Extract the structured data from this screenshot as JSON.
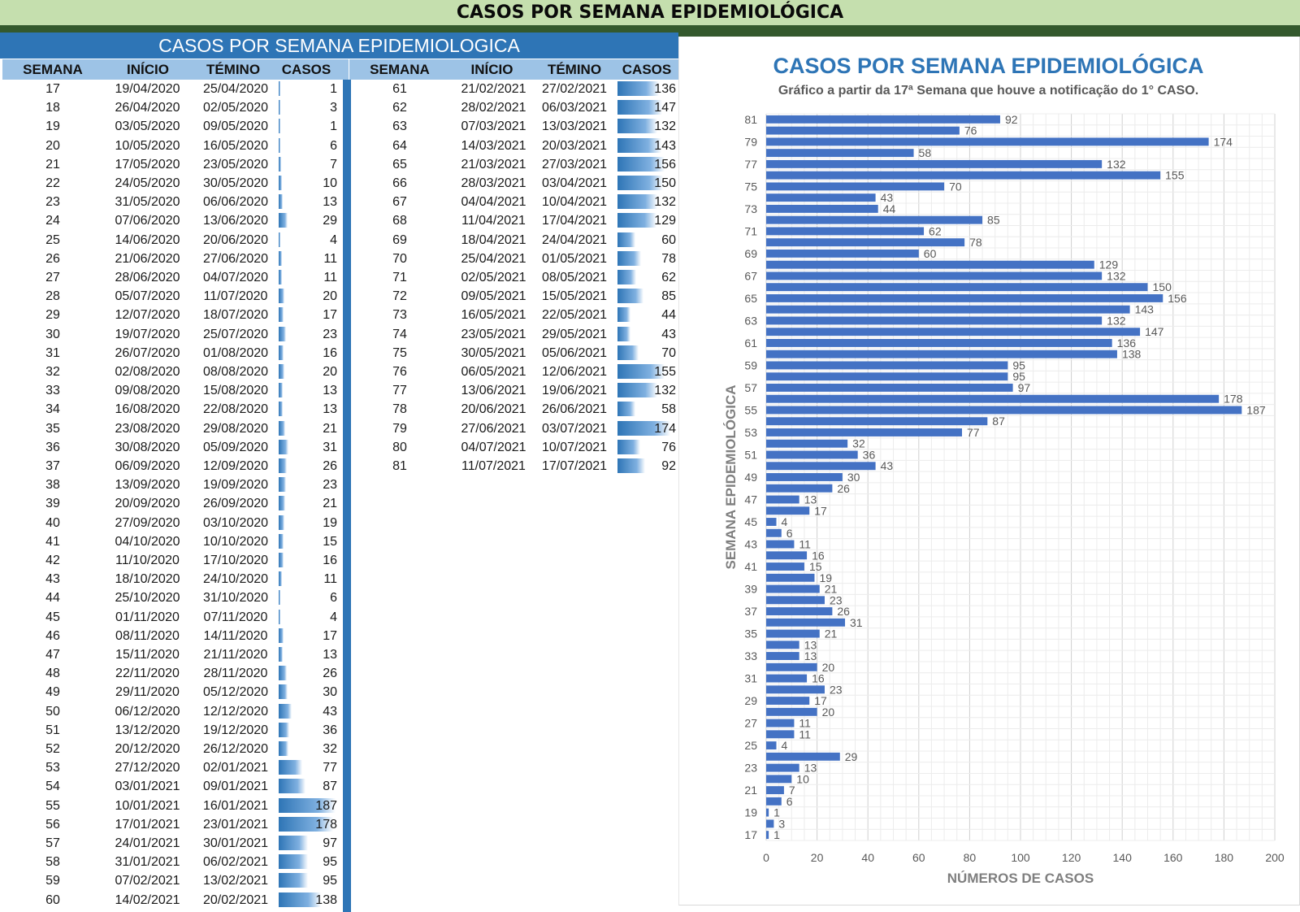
{
  "header": {
    "title": "CASOS POR SEMANA EPIDEMIOLÓGICA"
  },
  "table": {
    "title": "CASOS POR SEMANA EPIDEMIOLOGICA",
    "columns": [
      "SEMANA",
      "INÍCIO",
      "TÉMINO",
      "CASOS"
    ],
    "bar_color": "#2e75b6",
    "rows": [
      [
        "17",
        "19/04/2020",
        "25/04/2020",
        1
      ],
      [
        "18",
        "26/04/2020",
        "02/05/2020",
        3
      ],
      [
        "19",
        "03/05/2020",
        "09/05/2020",
        1
      ],
      [
        "20",
        "10/05/2020",
        "16/05/2020",
        6
      ],
      [
        "21",
        "17/05/2020",
        "23/05/2020",
        7
      ],
      [
        "22",
        "24/05/2020",
        "30/05/2020",
        10
      ],
      [
        "23",
        "31/05/2020",
        "06/06/2020",
        13
      ],
      [
        "24",
        "07/06/2020",
        "13/06/2020",
        29
      ],
      [
        "25",
        "14/06/2020",
        "20/06/2020",
        4
      ],
      [
        "26",
        "21/06/2020",
        "27/06/2020",
        11
      ],
      [
        "27",
        "28/06/2020",
        "04/07/2020",
        11
      ],
      [
        "28",
        "05/07/2020",
        "11/07/2020",
        20
      ],
      [
        "29",
        "12/07/2020",
        "18/07/2020",
        17
      ],
      [
        "30",
        "19/07/2020",
        "25/07/2020",
        23
      ],
      [
        "31",
        "26/07/2020",
        "01/08/2020",
        16
      ],
      [
        "32",
        "02/08/2020",
        "08/08/2020",
        20
      ],
      [
        "33",
        "09/08/2020",
        "15/08/2020",
        13
      ],
      [
        "34",
        "16/08/2020",
        "22/08/2020",
        13
      ],
      [
        "35",
        "23/08/2020",
        "29/08/2020",
        21
      ],
      [
        "36",
        "30/08/2020",
        "05/09/2020",
        31
      ],
      [
        "37",
        "06/09/2020",
        "12/09/2020",
        26
      ],
      [
        "38",
        "13/09/2020",
        "19/09/2020",
        23
      ],
      [
        "39",
        "20/09/2020",
        "26/09/2020",
        21
      ],
      [
        "40",
        "27/09/2020",
        "03/10/2020",
        19
      ],
      [
        "41",
        "04/10/2020",
        "10/10/2020",
        15
      ],
      [
        "42",
        "11/10/2020",
        "17/10/2020",
        16
      ],
      [
        "43",
        "18/10/2020",
        "24/10/2020",
        11
      ],
      [
        "44",
        "25/10/2020",
        "31/10/2020",
        6
      ],
      [
        "45",
        "01/11/2020",
        "07/11/2020",
        4
      ],
      [
        "46",
        "08/11/2020",
        "14/11/2020",
        17
      ],
      [
        "47",
        "15/11/2020",
        "21/11/2020",
        13
      ],
      [
        "48",
        "22/11/2020",
        "28/11/2020",
        26
      ],
      [
        "49",
        "29/11/2020",
        "05/12/2020",
        30
      ],
      [
        "50",
        "06/12/2020",
        "12/12/2020",
        43
      ],
      [
        "51",
        "13/12/2020",
        "19/12/2020",
        36
      ],
      [
        "52",
        "20/12/2020",
        "26/12/2020",
        32
      ],
      [
        "53",
        "27/12/2020",
        "02/01/2021",
        77
      ],
      [
        "54",
        "03/01/2021",
        "09/01/2021",
        87
      ],
      [
        "55",
        "10/01/2021",
        "16/01/2021",
        187
      ],
      [
        "56",
        "17/01/2021",
        "23/01/2021",
        178
      ],
      [
        "57",
        "24/01/2021",
        "30/01/2021",
        97
      ],
      [
        "58",
        "31/01/2021",
        "06/02/2021",
        95
      ],
      [
        "59",
        "07/02/2021",
        "13/02/2021",
        95
      ],
      [
        "60",
        "14/02/2021",
        "20/02/2021",
        138
      ],
      [
        "61",
        "21/02/2021",
        "27/02/2021",
        136
      ],
      [
        "62",
        "28/02/2021",
        "06/03/2021",
        147
      ],
      [
        "63",
        "07/03/2021",
        "13/03/2021",
        132
      ],
      [
        "64",
        "14/03/2021",
        "20/03/2021",
        143
      ],
      [
        "65",
        "21/03/2021",
        "27/03/2021",
        156
      ],
      [
        "66",
        "28/03/2021",
        "03/04/2021",
        150
      ],
      [
        "67",
        "04/04/2021",
        "10/04/2021",
        132
      ],
      [
        "68",
        "11/04/2021",
        "17/04/2021",
        129
      ],
      [
        "69",
        "18/04/2021",
        "24/04/2021",
        60
      ],
      [
        "70",
        "25/04/2021",
        "01/05/2021",
        78
      ],
      [
        "71",
        "02/05/2021",
        "08/05/2021",
        62
      ],
      [
        "72",
        "09/05/2021",
        "15/05/2021",
        85
      ],
      [
        "73",
        "16/05/2021",
        "22/05/2021",
        44
      ],
      [
        "74",
        "23/05/2021",
        "29/05/2021",
        43
      ],
      [
        "75",
        "30/05/2021",
        "05/06/2021",
        70
      ],
      [
        "76",
        "06/05/2021",
        "12/06/2021",
        155
      ],
      [
        "77",
        "13/06/2021",
        "19/06/2021",
        132
      ],
      [
        "78",
        "20/06/2021",
        "26/06/2021",
        58
      ],
      [
        "79",
        "27/06/2021",
        "03/07/2021",
        174
      ],
      [
        "80",
        "04/07/2021",
        "10/07/2021",
        76
      ],
      [
        "81",
        "11/07/2021",
        "17/07/2021",
        92
      ]
    ]
  },
  "chart_data": {
    "type": "bar",
    "orientation": "horizontal",
    "title": "CASOS POR SEMANA EPIDEMIOLÓGICA",
    "subtitle": "Gráfico a partir da 17ª Semana que houve a notificação do 1° CASO.",
    "xlabel": "NÚMEROS DE CASOS",
    "ylabel": "SEMANA EPIDEMIOLÓGICA",
    "xlim": [
      0,
      200
    ],
    "xticks": [
      0,
      20,
      40,
      60,
      80,
      100,
      120,
      140,
      160,
      180,
      200
    ],
    "yticks": [
      "17",
      "19",
      "21",
      "23",
      "25",
      "27",
      "29",
      "31",
      "33",
      "35",
      "37",
      "39",
      "41",
      "43",
      "45",
      "47",
      "49",
      "51",
      "53",
      "55",
      "57",
      "59",
      "61",
      "63",
      "65",
      "67",
      "69",
      "71",
      "73",
      "75",
      "77",
      "79",
      "81"
    ],
    "grid": true,
    "bar_color": "#4472c4",
    "categories": [
      "17",
      "18",
      "19",
      "20",
      "21",
      "22",
      "23",
      "24",
      "25",
      "26",
      "27",
      "28",
      "29",
      "30",
      "31",
      "32",
      "33",
      "34",
      "35",
      "36",
      "37",
      "38",
      "39",
      "40",
      "41",
      "42",
      "43",
      "44",
      "45",
      "46",
      "47",
      "48",
      "49",
      "50",
      "51",
      "52",
      "53",
      "54",
      "55",
      "56",
      "57",
      "58",
      "59",
      "60",
      "61",
      "62",
      "63",
      "64",
      "65",
      "66",
      "67",
      "68",
      "69",
      "70",
      "71",
      "72",
      "73",
      "74",
      "75",
      "76",
      "77",
      "78",
      "79",
      "80",
      "81"
    ],
    "values": [
      1,
      3,
      1,
      6,
      7,
      10,
      13,
      29,
      4,
      11,
      11,
      20,
      17,
      23,
      16,
      20,
      13,
      13,
      21,
      31,
      26,
      23,
      21,
      19,
      15,
      16,
      11,
      6,
      4,
      17,
      13,
      26,
      30,
      43,
      36,
      32,
      77,
      87,
      187,
      178,
      97,
      95,
      95,
      138,
      136,
      147,
      132,
      143,
      156,
      150,
      132,
      129,
      60,
      78,
      62,
      85,
      44,
      43,
      70,
      155,
      132,
      58,
      174,
      76,
      92
    ]
  }
}
